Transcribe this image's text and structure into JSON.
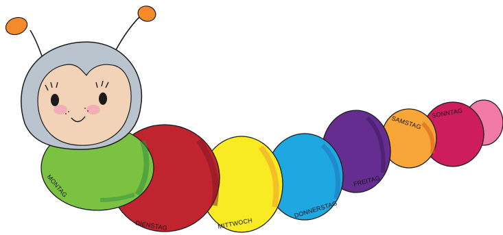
{
  "illustration": {
    "subject": "caterpillar-days-of-week",
    "colors": {
      "outline": "#1a1a1a",
      "head": "#f3d3b7",
      "hood": "#b9c4cf",
      "antenna_tip": "#f58a2a",
      "cheek": "#f4a6b8",
      "tail": "#f27aa6"
    },
    "segments": [
      {
        "label": "MONTAG",
        "color": "#7cc242"
      },
      {
        "label": "DIENSTAG",
        "color": "#c0252f"
      },
      {
        "label": "MITTWOCH",
        "color": "#f9eb23"
      },
      {
        "label": "DONNERSTAG",
        "color": "#1ea7e1"
      },
      {
        "label": "FREITAG",
        "color": "#662d91"
      },
      {
        "label": "SAMSTAG",
        "color": "#f7a637"
      },
      {
        "label": "SONNTAG",
        "color": "#cd1d5c"
      }
    ]
  }
}
